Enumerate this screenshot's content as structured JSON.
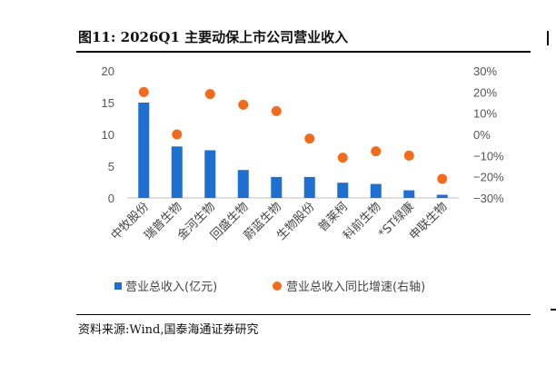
{
  "figure": {
    "title": "图11:  2026Q1 主要动保上市公司营业收入",
    "source": "资料来源:Wind,国泰海通证券研究"
  },
  "chart_data": {
    "type": "bar",
    "categories": [
      "中牧股份",
      "瑞普生物",
      "金河生物",
      "回盛生物",
      "蔚蓝生物",
      "生物股份",
      "普莱柯",
      "科前生物",
      "*ST绿康",
      "申联生物"
    ],
    "series": [
      {
        "name": "营业总收入(亿元)",
        "type": "bar",
        "axis": "left",
        "color": "#1f6fd1",
        "values": [
          15.0,
          8.1,
          7.5,
          4.4,
          3.3,
          3.3,
          2.4,
          2.2,
          1.2,
          0.5
        ]
      },
      {
        "name": "营业总收入同比增速(右轴)",
        "type": "scatter",
        "axis": "right",
        "color": "#f26a1b",
        "values": [
          20,
          0,
          19,
          14,
          11,
          -2,
          -11,
          -8,
          -10,
          -21
        ]
      }
    ],
    "left_axis": {
      "min": 0,
      "max": 20,
      "ticks": [
        "0",
        "5",
        "10",
        "15",
        "20"
      ]
    },
    "right_axis": {
      "min": -30,
      "max": 30,
      "ticks": [
        "−30%",
        "−20%",
        "−10%",
        "0%",
        "10%",
        "20%",
        "30%"
      ]
    },
    "legend": "bottom",
    "grid": false
  }
}
